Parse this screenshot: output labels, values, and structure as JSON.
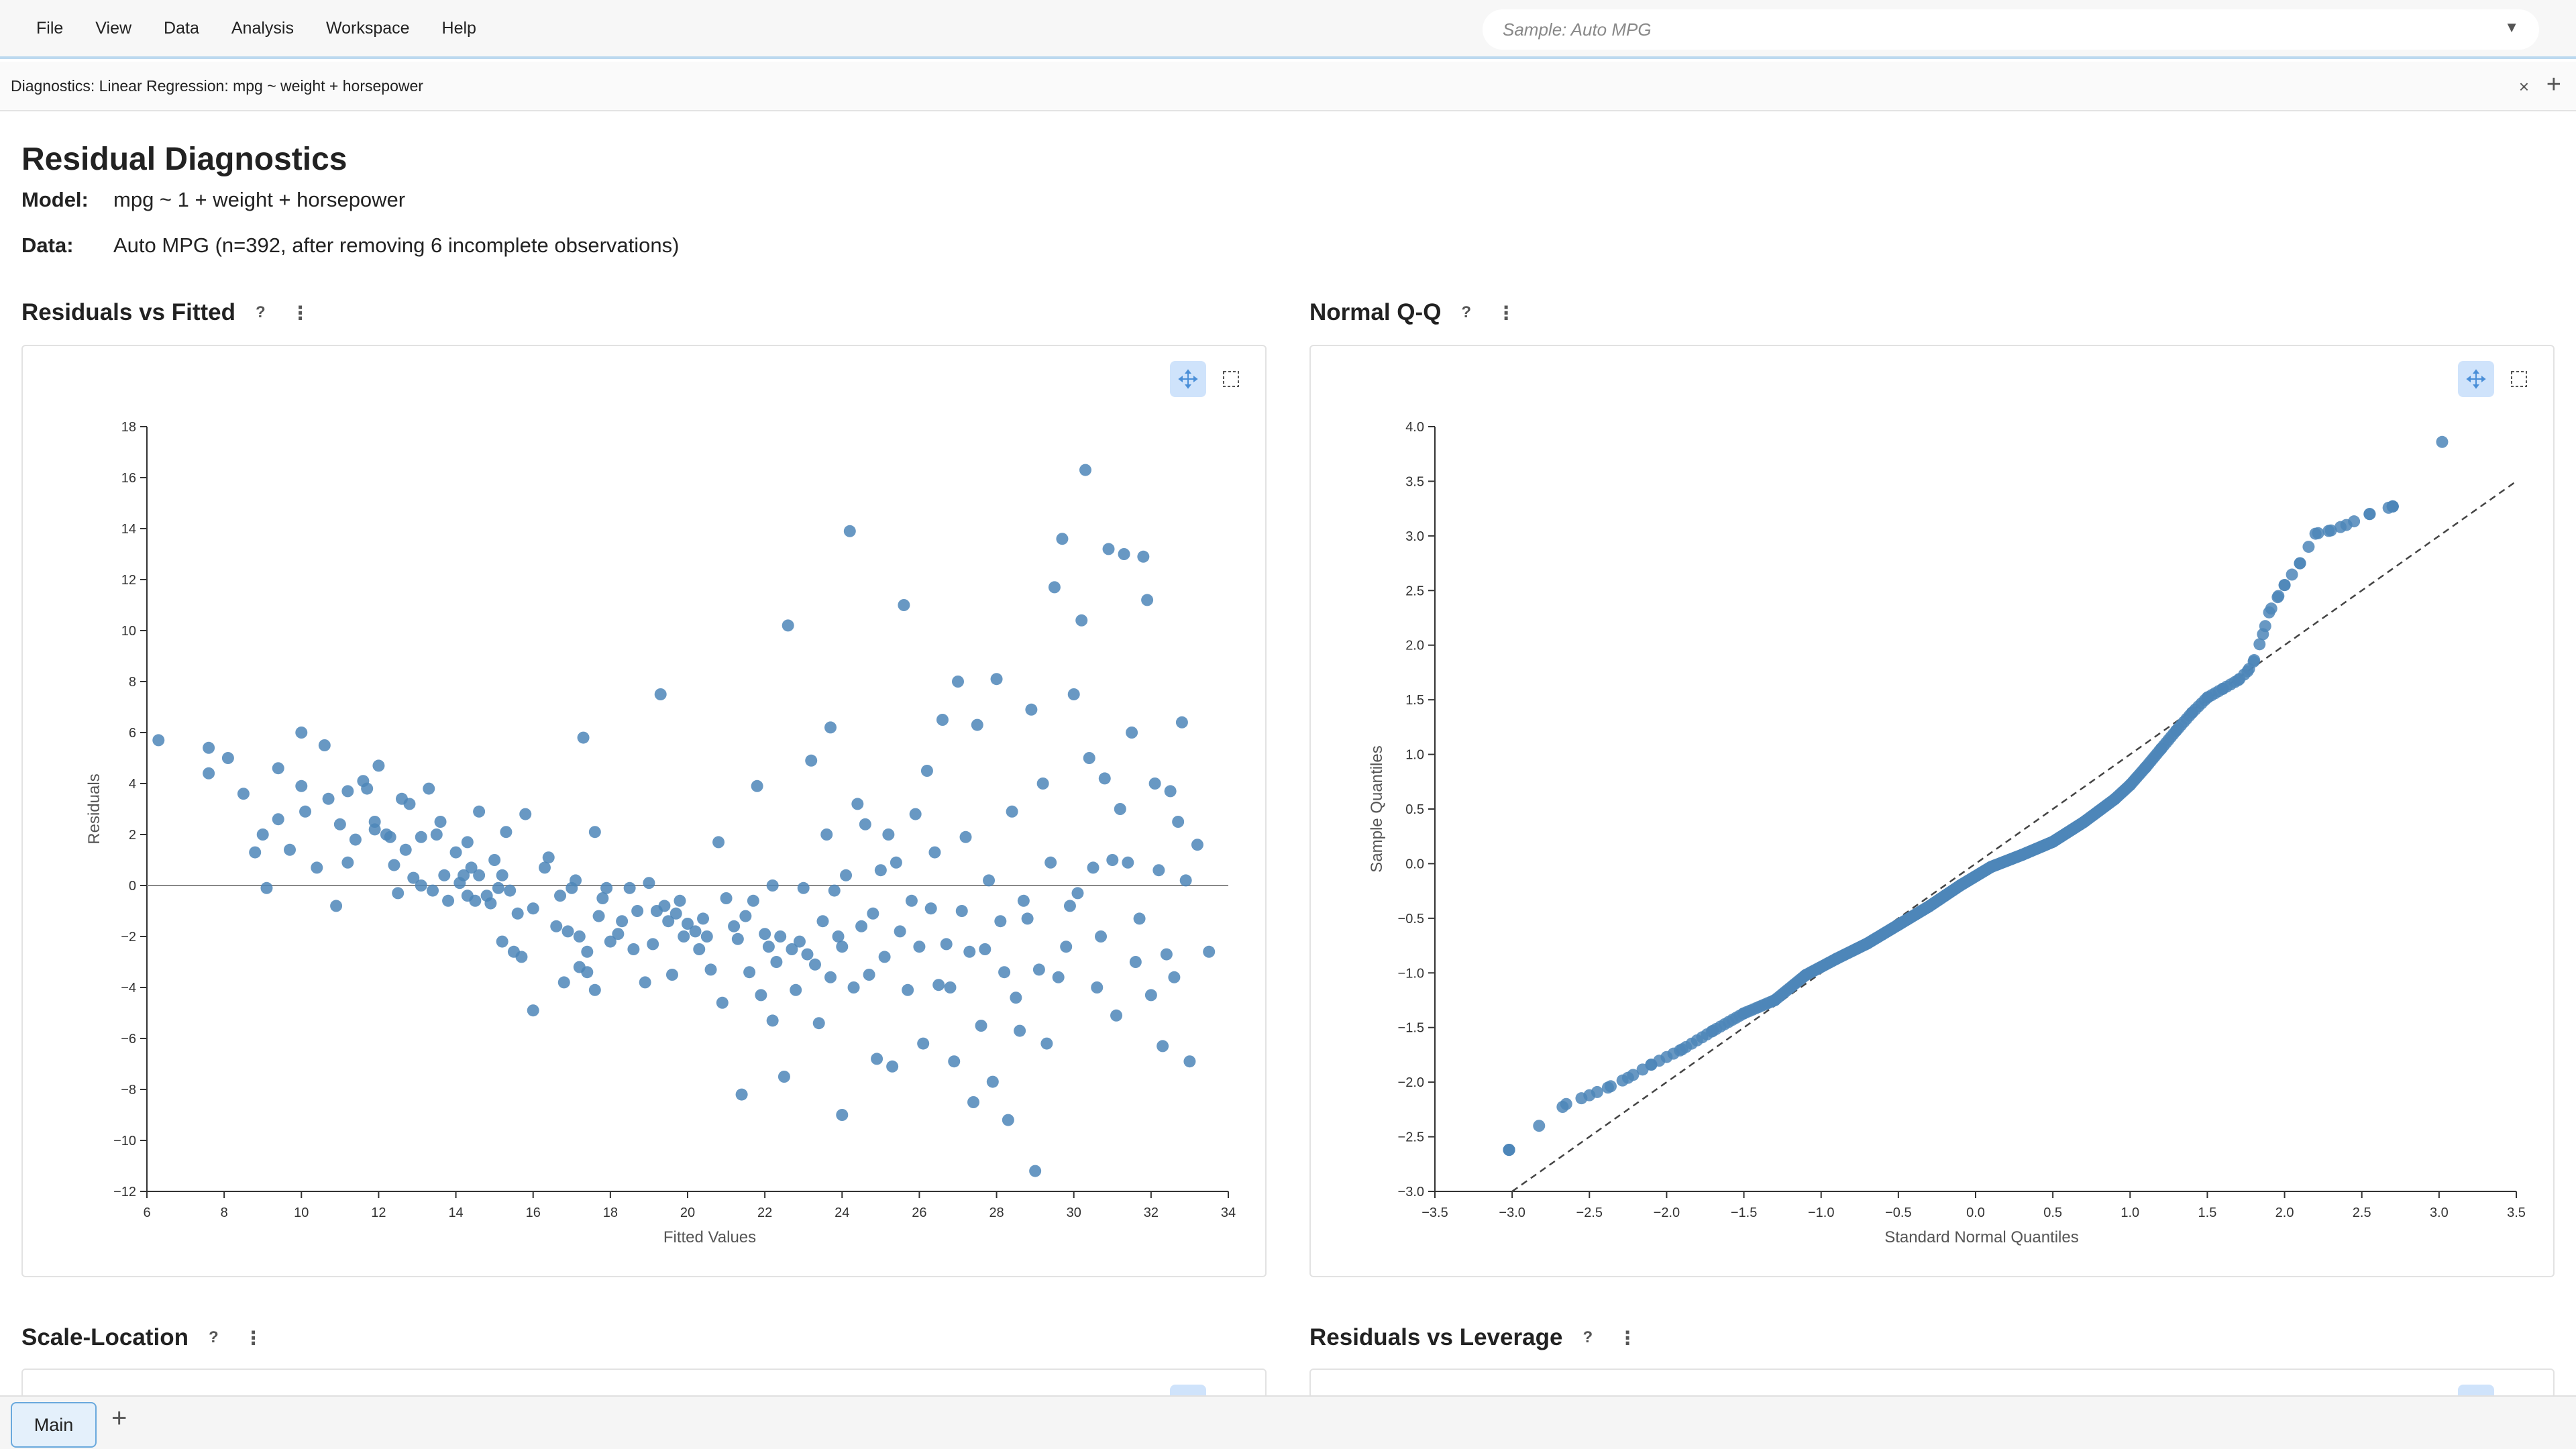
{
  "menu": [
    "File",
    "View",
    "Data",
    "Analysis",
    "Workspace",
    "Help"
  ],
  "sample_selector": {
    "placeholder": "Sample: Auto MPG",
    "arrow": "▼"
  },
  "doc_tab": {
    "label": "Diagnostics: Linear Regression: mpg ~ weight + horsepower",
    "close": "×",
    "add": "+"
  },
  "page": {
    "title": "Residual Diagnostics",
    "model_label": "Model:",
    "model_value": "mpg ~ 1 + weight + horsepower",
    "data_label": "Data:",
    "data_value": "Auto MPG (n=392, after removing 6 incomplete observations)"
  },
  "sections": {
    "rvf": {
      "title": "Residuals vs Fitted",
      "help": "?",
      "more": "⋮"
    },
    "qq": {
      "title": "Normal Q-Q",
      "help": "?",
      "more": "⋮"
    },
    "scale": {
      "title": "Scale-Location",
      "help": "?",
      "more": "⋮"
    },
    "leverage": {
      "title": "Residuals vs Leverage",
      "help": "?",
      "more": "⋮"
    }
  },
  "bottom": {
    "tab": "Main",
    "add": "+"
  },
  "colors": {
    "point": "#4e86b9",
    "accent": "#6aa9dd",
    "tool_active": "#cfe3fb"
  },
  "icons": [
    "crosshair-icon",
    "box-select-icon"
  ],
  "chart_data": [
    {
      "type": "scatter",
      "title": "Residuals vs Fitted",
      "xlabel": "Fitted Values",
      "ylabel": "Residuals",
      "xlim": [
        6,
        34
      ],
      "ylim": [
        -12,
        18
      ],
      "xticks": [
        "6",
        "8",
        "10",
        "12",
        "14",
        "16",
        "18",
        "20",
        "22",
        "24",
        "26",
        "28",
        "30",
        "32",
        "34"
      ],
      "yticks": [
        "−12",
        "−10",
        "−8",
        "−6",
        "−4",
        "−2",
        "0",
        "2",
        "4",
        "6",
        "8",
        "10",
        "12",
        "14",
        "16",
        "18"
      ],
      "reference_line": {
        "y": 0
      },
      "points": [
        [
          6.3,
          5.7
        ],
        [
          7.6,
          5.4
        ],
        [
          8.1,
          5.0
        ],
        [
          7.6,
          4.4
        ],
        [
          8.5,
          3.6
        ],
        [
          9.0,
          2.0
        ],
        [
          8.8,
          1.3
        ],
        [
          9.1,
          -0.1
        ],
        [
          9.4,
          4.6
        ],
        [
          9.4,
          2.6
        ],
        [
          9.7,
          1.4
        ],
        [
          10.0,
          6.0
        ],
        [
          10.0,
          3.9
        ],
        [
          10.1,
          2.9
        ],
        [
          10.4,
          0.7
        ],
        [
          10.6,
          5.5
        ],
        [
          10.7,
          3.4
        ],
        [
          10.9,
          -0.8
        ],
        [
          11.0,
          2.4
        ],
        [
          11.2,
          3.7
        ],
        [
          11.2,
          0.9
        ],
        [
          11.4,
          1.8
        ],
        [
          11.6,
          4.1
        ],
        [
          11.7,
          3.8
        ],
        [
          11.9,
          2.5
        ],
        [
          11.9,
          2.2
        ],
        [
          12.0,
          4.7
        ],
        [
          12.2,
          2.0
        ],
        [
          12.3,
          1.9
        ],
        [
          12.4,
          0.8
        ],
        [
          12.5,
          -0.3
        ],
        [
          12.6,
          3.4
        ],
        [
          12.7,
          1.4
        ],
        [
          12.8,
          3.2
        ],
        [
          12.9,
          0.3
        ],
        [
          13.1,
          0.0
        ],
        [
          13.1,
          1.9
        ],
        [
          13.3,
          3.8
        ],
        [
          13.4,
          -0.2
        ],
        [
          13.5,
          2.0
        ],
        [
          13.6,
          2.5
        ],
        [
          13.7,
          0.4
        ],
        [
          13.8,
          -0.6
        ],
        [
          14.0,
          1.3
        ],
        [
          14.1,
          0.1
        ],
        [
          14.2,
          0.4
        ],
        [
          14.3,
          -0.4
        ],
        [
          14.3,
          1.7
        ],
        [
          14.4,
          0.7
        ],
        [
          14.5,
          -0.6
        ],
        [
          14.6,
          0.4
        ],
        [
          14.6,
          2.9
        ],
        [
          14.8,
          -0.4
        ],
        [
          14.9,
          -0.7
        ],
        [
          15.0,
          1.0
        ],
        [
          15.1,
          -0.1
        ],
        [
          15.2,
          -2.2
        ],
        [
          15.2,
          0.4
        ],
        [
          15.3,
          2.1
        ],
        [
          15.4,
          -0.2
        ],
        [
          15.5,
          -2.6
        ],
        [
          15.6,
          -1.1
        ],
        [
          15.7,
          -2.8
        ],
        [
          15.8,
          2.8
        ],
        [
          16.0,
          -4.9
        ],
        [
          16.0,
          -0.9
        ],
        [
          16.3,
          0.7
        ],
        [
          16.4,
          1.1
        ],
        [
          16.6,
          -1.6
        ],
        [
          16.7,
          -0.4
        ],
        [
          16.8,
          -3.8
        ],
        [
          16.9,
          -1.8
        ],
        [
          17.0,
          -0.1
        ],
        [
          17.1,
          0.2
        ],
        [
          17.2,
          -3.2
        ],
        [
          17.2,
          -2.0
        ],
        [
          17.3,
          5.8
        ],
        [
          17.4,
          -2.6
        ],
        [
          17.4,
          -3.4
        ],
        [
          17.6,
          2.1
        ],
        [
          17.6,
          -4.1
        ],
        [
          17.7,
          -1.2
        ],
        [
          17.8,
          -0.5
        ],
        [
          17.9,
          -0.1
        ],
        [
          18.0,
          -2.2
        ],
        [
          18.2,
          -1.9
        ],
        [
          18.3,
          -1.4
        ],
        [
          18.5,
          -0.1
        ],
        [
          18.6,
          -2.5
        ],
        [
          18.7,
          -1.0
        ],
        [
          18.9,
          -3.8
        ],
        [
          19.0,
          0.1
        ],
        [
          19.1,
          -2.3
        ],
        [
          19.2,
          -1.0
        ],
        [
          19.3,
          7.5
        ],
        [
          19.4,
          -0.8
        ],
        [
          19.5,
          -1.4
        ],
        [
          19.6,
          -3.5
        ],
        [
          19.7,
          -1.1
        ],
        [
          19.8,
          -0.6
        ],
        [
          19.9,
          -2.0
        ],
        [
          20.0,
          -1.5
        ],
        [
          20.2,
          -1.8
        ],
        [
          20.3,
          -2.5
        ],
        [
          20.4,
          -1.3
        ],
        [
          20.5,
          -2.0
        ],
        [
          20.6,
          -3.3
        ],
        [
          20.8,
          1.7
        ],
        [
          20.9,
          -4.6
        ],
        [
          21.0,
          -0.5
        ],
        [
          21.2,
          -1.6
        ],
        [
          21.3,
          -2.1
        ],
        [
          21.4,
          -8.2
        ],
        [
          21.5,
          -1.2
        ],
        [
          21.6,
          -3.4
        ],
        [
          21.7,
          -0.6
        ],
        [
          21.8,
          3.9
        ],
        [
          21.9,
          -4.3
        ],
        [
          22.0,
          -1.9
        ],
        [
          22.1,
          -2.4
        ],
        [
          22.2,
          -5.3
        ],
        [
          22.2,
          0.0
        ],
        [
          22.3,
          -3.0
        ],
        [
          22.4,
          -2.0
        ],
        [
          22.5,
          -7.5
        ],
        [
          22.6,
          10.2
        ],
        [
          22.7,
          -2.5
        ],
        [
          22.8,
          -4.1
        ],
        [
          22.9,
          -2.2
        ],
        [
          23.0,
          -0.1
        ],
        [
          23.1,
          -2.7
        ],
        [
          23.2,
          4.9
        ],
        [
          23.3,
          -3.1
        ],
        [
          23.4,
          -5.4
        ],
        [
          23.5,
          -1.4
        ],
        [
          23.6,
          2.0
        ],
        [
          23.7,
          -3.6
        ],
        [
          23.7,
          6.2
        ],
        [
          23.8,
          -0.2
        ],
        [
          23.9,
          -2.0
        ],
        [
          24.0,
          -9.0
        ],
        [
          24.0,
          -2.4
        ],
        [
          24.1,
          0.4
        ],
        [
          24.2,
          13.9
        ],
        [
          24.3,
          -4.0
        ],
        [
          24.4,
          3.2
        ],
        [
          24.5,
          -1.6
        ],
        [
          24.6,
          2.4
        ],
        [
          24.7,
          -3.5
        ],
        [
          24.8,
          -1.1
        ],
        [
          24.9,
          -6.8
        ],
        [
          25.0,
          0.6
        ],
        [
          25.1,
          -2.8
        ],
        [
          25.2,
          2.0
        ],
        [
          25.3,
          -7.1
        ],
        [
          25.4,
          0.9
        ],
        [
          25.5,
          -1.8
        ],
        [
          25.6,
          11.0
        ],
        [
          25.7,
          -4.1
        ],
        [
          25.8,
          -0.6
        ],
        [
          25.9,
          2.8
        ],
        [
          26.0,
          -2.4
        ],
        [
          26.1,
          -6.2
        ],
        [
          26.2,
          4.5
        ],
        [
          26.3,
          -0.9
        ],
        [
          26.4,
          1.3
        ],
        [
          26.5,
          -3.9
        ],
        [
          26.6,
          6.5
        ],
        [
          26.7,
          -2.3
        ],
        [
          26.8,
          -4.0
        ],
        [
          26.9,
          -6.9
        ],
        [
          27.0,
          8.0
        ],
        [
          27.1,
          -1.0
        ],
        [
          27.2,
          1.9
        ],
        [
          27.3,
          -2.6
        ],
        [
          27.4,
          -8.5
        ],
        [
          27.5,
          6.3
        ],
        [
          27.6,
          -5.5
        ],
        [
          27.7,
          -2.5
        ],
        [
          27.8,
          0.2
        ],
        [
          27.9,
          -7.7
        ],
        [
          28.0,
          8.1
        ],
        [
          28.1,
          -1.4
        ],
        [
          28.2,
          -3.4
        ],
        [
          28.3,
          -9.2
        ],
        [
          28.4,
          2.9
        ],
        [
          28.5,
          -4.4
        ],
        [
          28.6,
          -5.7
        ],
        [
          28.7,
          -0.6
        ],
        [
          28.8,
          -1.3
        ],
        [
          28.9,
          6.9
        ],
        [
          29.0,
          -11.2
        ],
        [
          29.1,
          -3.3
        ],
        [
          29.2,
          4.0
        ],
        [
          29.3,
          -6.2
        ],
        [
          29.4,
          0.9
        ],
        [
          29.5,
          11.7
        ],
        [
          29.6,
          -3.6
        ],
        [
          29.7,
          13.6
        ],
        [
          29.8,
          -2.4
        ],
        [
          29.9,
          -0.8
        ],
        [
          30.0,
          7.5
        ],
        [
          30.1,
          -0.3
        ],
        [
          30.2,
          10.4
        ],
        [
          30.3,
          16.3
        ],
        [
          30.4,
          5.0
        ],
        [
          30.5,
          0.7
        ],
        [
          30.6,
          -4.0
        ],
        [
          30.7,
          -2.0
        ],
        [
          30.8,
          4.2
        ],
        [
          30.9,
          13.2
        ],
        [
          31.0,
          1.0
        ],
        [
          31.1,
          -5.1
        ],
        [
          31.2,
          3.0
        ],
        [
          31.3,
          13.0
        ],
        [
          31.4,
          0.9
        ],
        [
          31.5,
          6.0
        ],
        [
          31.6,
          -3.0
        ],
        [
          31.7,
          -1.3
        ],
        [
          31.8,
          12.9
        ],
        [
          31.9,
          11.2
        ],
        [
          32.0,
          -4.3
        ],
        [
          32.1,
          4.0
        ],
        [
          32.2,
          0.6
        ],
        [
          32.3,
          -6.3
        ],
        [
          32.4,
          -2.7
        ],
        [
          32.5,
          3.7
        ],
        [
          32.6,
          -3.6
        ],
        [
          32.7,
          2.5
        ],
        [
          32.8,
          6.4
        ],
        [
          32.9,
          0.2
        ],
        [
          33.0,
          -6.9
        ],
        [
          33.2,
          1.6
        ],
        [
          33.5,
          -2.6
        ]
      ]
    },
    {
      "type": "scatter",
      "title": "Normal Q-Q",
      "xlabel": "Standard Normal Quantiles",
      "ylabel": "Sample Quantiles",
      "xlim": [
        -3.5,
        3.5
      ],
      "ylim": [
        -3.0,
        4.0
      ],
      "xticks": [
        "−3.5",
        "−3.0",
        "−2.5",
        "−2.0",
        "−1.5",
        "−1.0",
        "−0.5",
        "0.0",
        "0.5",
        "1.0",
        "1.5",
        "2.0",
        "2.5",
        "3.0",
        "3.5"
      ],
      "yticks": [
        "−3.0",
        "−2.5",
        "−2.0",
        "−1.5",
        "−1.0",
        "−0.5",
        "0.0",
        "0.5",
        "1.0",
        "1.5",
        "2.0",
        "2.5",
        "3.0",
        "3.5",
        "4.0"
      ],
      "reference_line": {
        "from": [
          -3.0,
          -3.0
        ],
        "to": [
          3.5,
          3.5
        ],
        "style": "dashed"
      },
      "n_points": 392,
      "quantile_curve": [
        [
          -3.02,
          -2.62
        ],
        [
          -2.65,
          -2.2
        ],
        [
          -2.5,
          -2.12
        ],
        [
          -2.38,
          -2.05
        ],
        [
          -2.25,
          -1.96
        ],
        [
          -2.1,
          -1.84
        ],
        [
          -1.9,
          -1.7
        ],
        [
          -1.7,
          -1.53
        ],
        [
          -1.5,
          -1.37
        ],
        [
          -1.3,
          -1.25
        ],
        [
          -1.1,
          -1.02
        ],
        [
          -0.9,
          -0.87
        ],
        [
          -0.7,
          -0.73
        ],
        [
          -0.5,
          -0.56
        ],
        [
          -0.3,
          -0.39
        ],
        [
          -0.1,
          -0.2
        ],
        [
          0.1,
          -0.03
        ],
        [
          0.3,
          0.08
        ],
        [
          0.5,
          0.2
        ],
        [
          0.7,
          0.38
        ],
        [
          0.9,
          0.59
        ],
        [
          1.0,
          0.72
        ],
        [
          1.1,
          0.88
        ],
        [
          1.2,
          1.05
        ],
        [
          1.3,
          1.22
        ],
        [
          1.4,
          1.38
        ],
        [
          1.5,
          1.52
        ],
        [
          1.6,
          1.6
        ],
        [
          1.7,
          1.68
        ],
        [
          1.76,
          1.76
        ],
        [
          1.8,
          1.85
        ],
        [
          1.86,
          2.1
        ],
        [
          1.9,
          2.3
        ],
        [
          1.96,
          2.45
        ],
        [
          2.0,
          2.55
        ],
        [
          2.1,
          2.75
        ],
        [
          2.2,
          3.02
        ],
        [
          2.3,
          3.05
        ],
        [
          2.4,
          3.1
        ],
        [
          2.55,
          3.2
        ],
        [
          2.7,
          3.27
        ]
      ],
      "outlier_points": [
        [
          3.02,
          3.86
        ]
      ]
    }
  ]
}
